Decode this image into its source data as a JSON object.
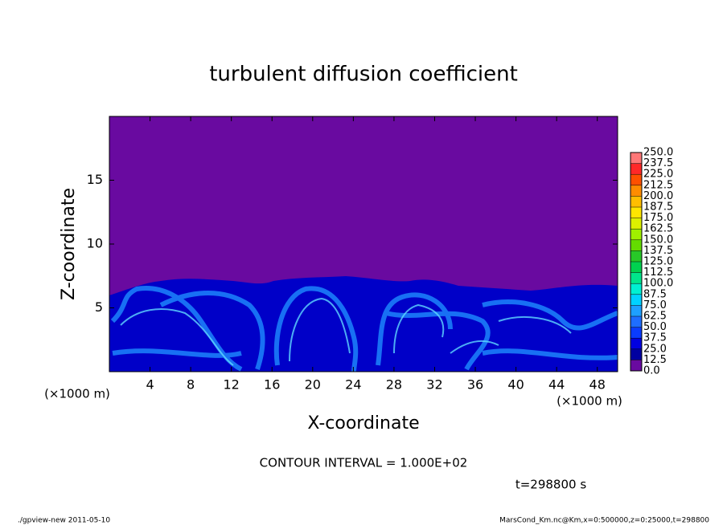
{
  "chart_data": {
    "type": "contour",
    "title": "turbulent diffusion coefficient",
    "x_label": "X-coordinate",
    "y_label": "Z-coordinate",
    "x_unit": "(×1000 m)",
    "y_unit": "(×1000 m)",
    "xlim": [
      0,
      50
    ],
    "ylim": [
      0,
      20
    ],
    "xticks": [
      4,
      8,
      12,
      16,
      20,
      24,
      28,
      32,
      36,
      40,
      44,
      48
    ],
    "yticks": [
      5,
      10,
      15
    ],
    "colorbar": {
      "levels": [
        {
          "value": 0,
          "label": "0.0"
        },
        {
          "value": 12.5,
          "label": "12.5"
        },
        {
          "value": 25,
          "label": "25.0"
        },
        {
          "value": 37.5,
          "label": "37.5"
        },
        {
          "value": 50,
          "label": "50.0"
        },
        {
          "value": 62.5,
          "label": "62.5"
        },
        {
          "value": 75,
          "label": "75.0"
        },
        {
          "value": 87.5,
          "label": "87.5"
        },
        {
          "value": 100,
          "label": "100.0"
        },
        {
          "value": 112.5,
          "label": "112.5"
        },
        {
          "value": 125,
          "label": "125.0"
        },
        {
          "value": 137.5,
          "label": "137.5"
        },
        {
          "value": 150,
          "label": "150.0"
        },
        {
          "value": 162.5,
          "label": "162.5"
        },
        {
          "value": 175,
          "label": "175.0"
        },
        {
          "value": 187.5,
          "label": "187.5"
        },
        {
          "value": 200,
          "label": "200.0"
        },
        {
          "value": 212.5,
          "label": "212.5"
        },
        {
          "value": 225,
          "label": "225.0"
        },
        {
          "value": 237.5,
          "label": "237.5"
        },
        {
          "value": 250,
          "label": "250.0"
        }
      ],
      "colors": [
        "#690aa0",
        "#0000a0",
        "#0000e0",
        "#0a3cff",
        "#1e6eff",
        "#1ea0ff",
        "#00d2ff",
        "#00f0d2",
        "#00e68c",
        "#00d250",
        "#28c828",
        "#64dc00",
        "#a0f000",
        "#dcf000",
        "#ffe600",
        "#ffbe00",
        "#ff8c00",
        "#ff5000",
        "#ff2828",
        "#ff7878"
      ]
    },
    "contour_interval": "CONTOUR INTERVAL = 1.000E+02",
    "time_label": "t=298800 s",
    "footer_left": "./gpview-new   2011-05-10",
    "footer_right": "MarsCond_Km.nc@Km,x=0:500000,z=0:25000,t=298800"
  }
}
